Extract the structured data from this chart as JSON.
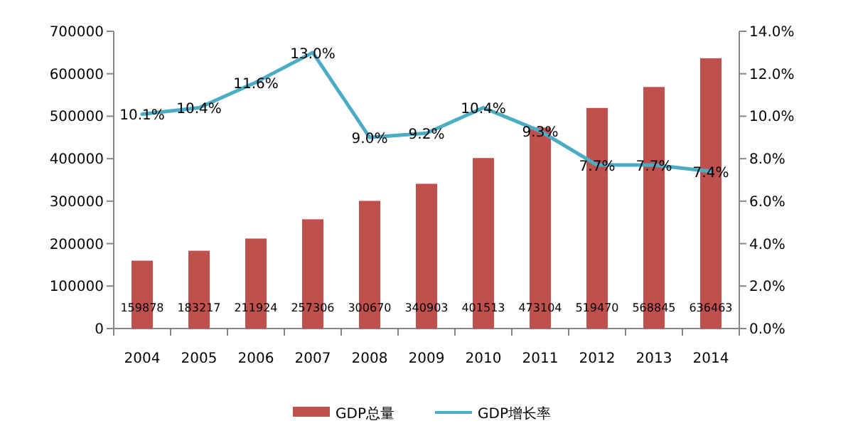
{
  "chart_data": {
    "type": "bar",
    "categories": [
      "2004",
      "2005",
      "2006",
      "2007",
      "2008",
      "2009",
      "2010",
      "2011",
      "2012",
      "2013",
      "2014"
    ],
    "series": [
      {
        "name": "GDP总量",
        "color": "#c0504d",
        "values": [
          159878,
          183217,
          211924,
          257306,
          300670,
          340903,
          401513,
          473104,
          519470,
          568845,
          636463
        ],
        "data_labels": true
      },
      {
        "name": "GDP增长率",
        "type": "line",
        "axis": "y2",
        "color": "#4bacc6",
        "values": [
          10.1,
          10.4,
          11.6,
          13.0,
          9.0,
          9.2,
          10.4,
          9.3,
          7.7,
          7.7,
          7.4
        ],
        "value_labels": [
          "10.1%",
          "10.4%",
          "11.6%",
          "13.0%",
          "9.0%",
          "9.2%",
          "10.4%",
          "9.3%",
          "7.7%",
          "7.7%",
          "7.4%"
        ]
      }
    ],
    "ylim": [
      0,
      700000
    ],
    "yticks": [
      0,
      100000,
      200000,
      300000,
      400000,
      500000,
      600000,
      700000
    ],
    "y2lim": [
      0,
      14
    ],
    "y2ticks": [
      {
        "value": 0,
        "label": "0.0%"
      },
      {
        "value": 2,
        "label": "2.0%"
      },
      {
        "value": 4,
        "label": "4.0%"
      },
      {
        "value": 6,
        "label": "6.0%"
      },
      {
        "value": 8,
        "label": "8.0%"
      },
      {
        "value": 10,
        "label": "10.0%"
      },
      {
        "value": 12,
        "label": "12.0%"
      },
      {
        "value": 14,
        "label": "14.0%"
      }
    ],
    "legend": "bottom",
    "marker": "none",
    "line_style": "solid"
  }
}
